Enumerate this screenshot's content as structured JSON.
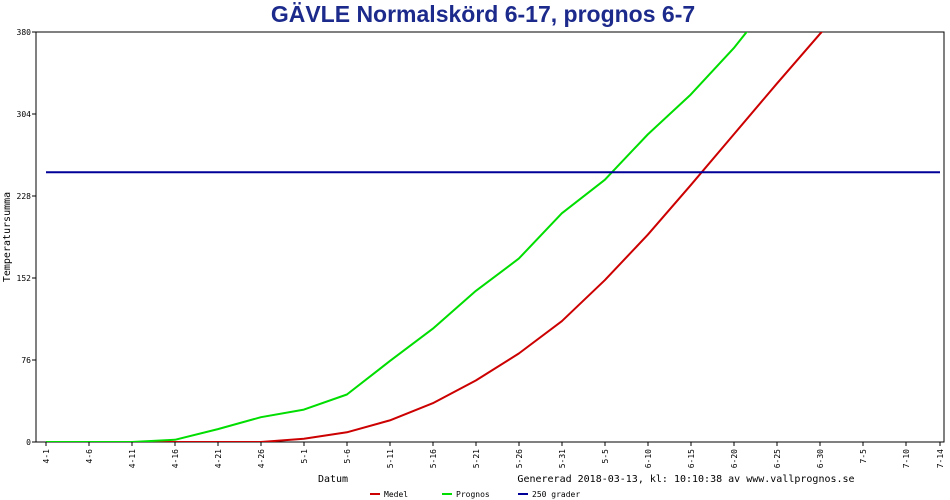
{
  "chart_data": {
    "type": "line",
    "title": "GÄVLE Normalskörd 6-17, prognos 6-7",
    "xlabel": "Datum",
    "ylabel": "Temperatursumma",
    "footer": "Genererad 2018-03-13, kl: 10:10:38 av www.vallprognos.se",
    "ylim": [
      0,
      380
    ],
    "yticks": [
      0,
      76,
      152,
      228,
      304,
      380
    ],
    "xticks": [
      "4-1",
      "4-6",
      "4-11",
      "4-16",
      "4-21",
      "4-26",
      "5-1",
      "5-6",
      "5-11",
      "5-16",
      "5-21",
      "5-26",
      "5-31",
      "5-5",
      "6-10",
      "6-15",
      "6-20",
      "6-25",
      "6-30",
      "7-5",
      "7-10",
      "7-14"
    ],
    "grid": false,
    "legend_position": "bottom",
    "series": [
      {
        "name": "Medel",
        "color": "#cc0000",
        "x": [
          "4-1",
          "4-16",
          "4-26",
          "5-1",
          "5-6",
          "5-11",
          "5-16",
          "5-21",
          "5-26",
          "5-31",
          "6-5",
          "6-10",
          "6-15",
          "6-20",
          "6-25",
          "6-30",
          "7-2"
        ],
        "values": [
          0,
          0,
          0,
          3,
          9,
          20,
          36,
          57,
          82,
          112,
          150,
          192,
          238,
          285,
          332,
          378,
          395
        ]
      },
      {
        "name": "Prognos",
        "color": "#00dd00",
        "x": [
          "4-1",
          "4-11",
          "4-16",
          "4-21",
          "4-26",
          "5-1",
          "5-6",
          "5-11",
          "5-16",
          "5-21",
          "5-26",
          "5-31",
          "6-5",
          "6-10",
          "6-15",
          "6-20",
          "6-23"
        ],
        "values": [
          0,
          0,
          2,
          12,
          23,
          30,
          44,
          75,
          105,
          140,
          170,
          212,
          243,
          285,
          322,
          365,
          395
        ]
      },
      {
        "name": "250 grader",
        "color": "#000099",
        "x": [
          "4-1",
          "7-14"
        ],
        "values": [
          250,
          250
        ]
      }
    ]
  }
}
